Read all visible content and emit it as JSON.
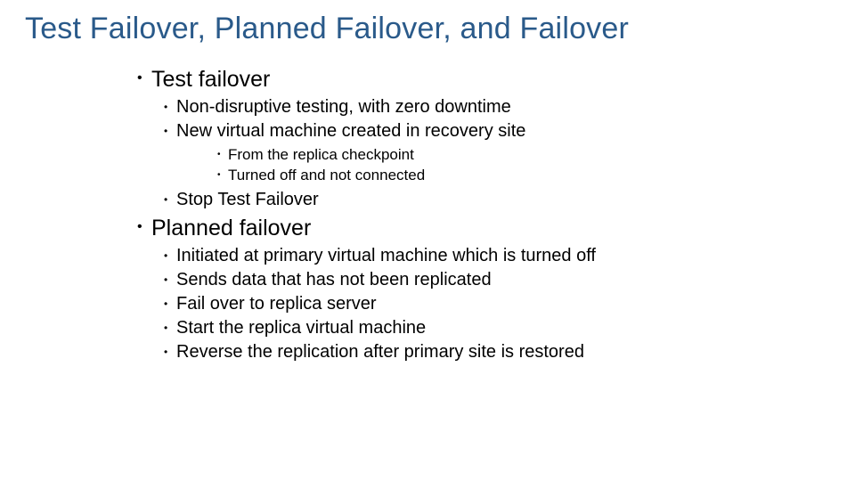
{
  "colors": {
    "title": "#2a5a8a",
    "body": "#000000",
    "background": "#ffffff"
  },
  "typography": {
    "title_fontsize": 34,
    "title_weight": 300,
    "l1_fontsize": 25,
    "l2_fontsize": 20,
    "l3_fontsize": 17,
    "font_family": "Segoe UI Light"
  },
  "slide": {
    "title": "Test Failover, Planned Failover, and Failover",
    "sections": [
      {
        "heading": "Test failover",
        "items": [
          {
            "text": "Non-disruptive testing, with zero downtime"
          },
          {
            "text": "New virtual machine created in recovery site",
            "subitems": [
              "From the replica checkpoint",
              "Turned off and not connected"
            ]
          },
          {
            "text": "Stop Test Failover"
          }
        ]
      },
      {
        "heading": "Planned failover",
        "items": [
          {
            "text": "Initiated at primary virtual machine which is turned off"
          },
          {
            "text": "Sends data that has not been replicated"
          },
          {
            "text": "Fail over to replica server"
          },
          {
            "text": "Start the replica virtual machine"
          },
          {
            "text": "Reverse the replication after primary site is restored"
          }
        ]
      }
    ]
  }
}
